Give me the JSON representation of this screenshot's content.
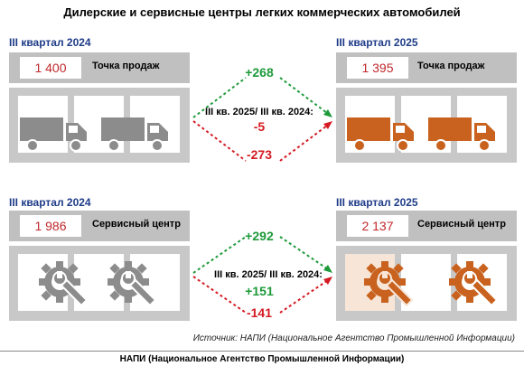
{
  "title": "Дилерские и сервисные центры легких коммерческих автомобилей",
  "sales": {
    "left": {
      "period": "III квартал 2024",
      "value": "1 400",
      "label": "Точка продаж"
    },
    "right": {
      "period": "III квартал 2025",
      "value": "1 395",
      "label": "Точка продаж"
    },
    "delta_up": "+268",
    "delta_down": "-273",
    "compare_label": "III кв. 2025/ III кв. 2024:",
    "compare_value": "-5"
  },
  "service": {
    "left": {
      "period": "III квартал 2024",
      "value": "1 986",
      "label": "Сервисный центр"
    },
    "right": {
      "period": "III квартал 2025",
      "value": "2 137",
      "label": "Сервисный центр"
    },
    "delta_up": "+292",
    "delta_down": "-141",
    "compare_label": "III кв. 2025/ III кв. 2024:",
    "compare_value": "+151"
  },
  "source": "Источник: НАПИ (Национальное Агентство Промышленной Информации)",
  "footer": "НАПИ (Национальное Агентство Промышленной Информации)",
  "colors": {
    "gray_icon": "#8c8c8c",
    "orange_icon": "#c8621e",
    "green": "#1e9a3a",
    "red": "#d51a22",
    "period": "#1f3c88"
  }
}
